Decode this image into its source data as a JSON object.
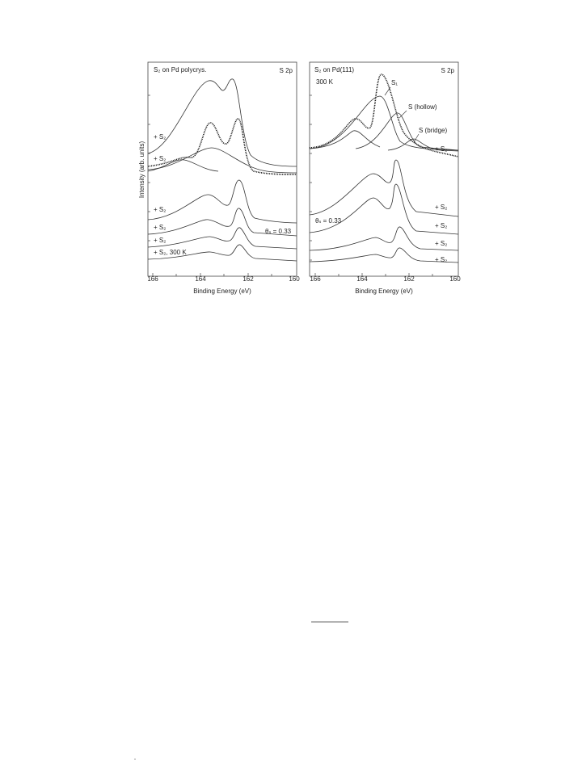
{
  "figure": {
    "y_label": "Intensity (arb. units)",
    "panels": [
      {
        "title": "S₂ on Pd polycrys.",
        "region": "S 2p",
        "x_label": "Binding Energy (eV)",
        "xticks": [
          166,
          164,
          162,
          160
        ],
        "labels": [
          "+ S₂",
          "+ S₂",
          "+ S₂",
          "+ S₂",
          "+ S₂",
          "+ S₂, 300 K",
          "θₛ = 0.33"
        ]
      },
      {
        "title": "S₂ on Pd(111)",
        "region": "S 2p",
        "x_label": "Binding Energy (eV)",
        "xticks": [
          166,
          164,
          162,
          160
        ],
        "labels": [
          "300 K",
          "S₁",
          "S (hollow)",
          "S (bridge)",
          "+ S₂",
          "+ S₂",
          "θₛ = 0.33",
          "+ S₂",
          "+ S₂",
          "+ S₂"
        ]
      }
    ]
  }
}
